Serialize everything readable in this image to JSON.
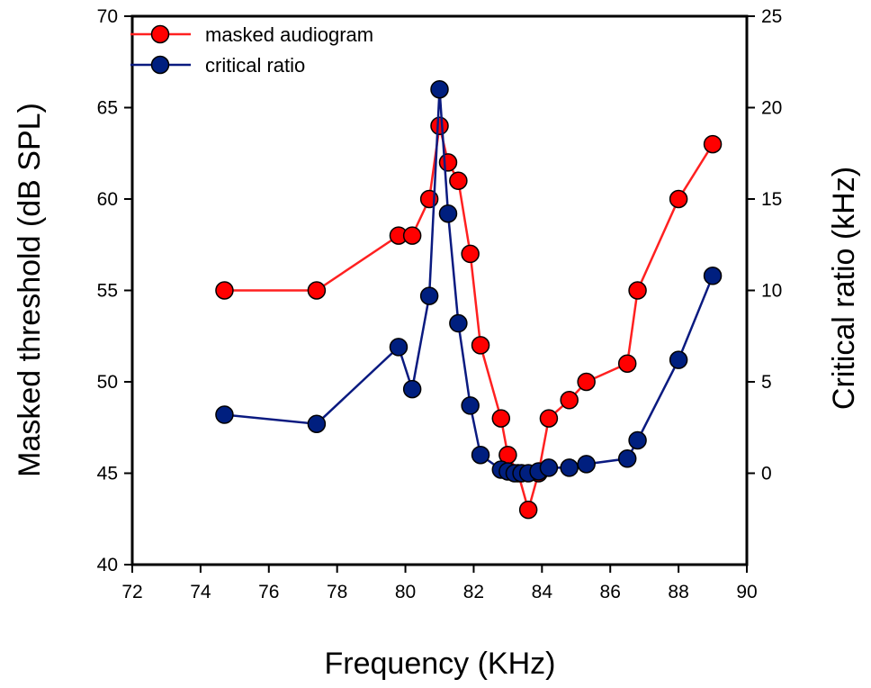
{
  "chart_data": {
    "type": "line",
    "title": "",
    "xlabel": "Frequency (KHz)",
    "ylabel": "Masked threshold (dB SPL)",
    "y2label": "Critical ratio (kHz)",
    "xlim": [
      72,
      90
    ],
    "ylim": [
      40,
      70
    ],
    "y2lim": [
      -5,
      25
    ],
    "xticks": [
      "72",
      "74",
      "76",
      "78",
      "80",
      "82",
      "84",
      "86",
      "88",
      "90"
    ],
    "yticks": [
      "40",
      "45",
      "50",
      "55",
      "60",
      "65",
      "70"
    ],
    "y2ticks": [
      "0",
      "5",
      "10",
      "15",
      "20",
      "25"
    ],
    "grid": false,
    "legend_position": "top-left",
    "series": [
      {
        "name": "masked audiogram",
        "axis": "left",
        "color": "#ff0000",
        "line_color": "#ff2020",
        "x": [
          74.7,
          77.4,
          79.8,
          80.2,
          80.7,
          81.0,
          81.25,
          81.55,
          81.9,
          82.2,
          82.8,
          83.0,
          83.3,
          83.6,
          83.9,
          84.2,
          84.8,
          85.3,
          86.5,
          86.8,
          88.0,
          89.0
        ],
        "values": [
          55,
          55,
          58,
          58,
          60,
          64,
          62,
          61,
          57,
          52,
          48,
          46,
          45,
          43,
          45,
          48,
          49,
          50,
          51,
          55,
          60,
          63
        ]
      },
      {
        "name": "critical ratio",
        "axis": "right",
        "color": "#001f7f",
        "line_color": "#0a1a80",
        "x": [
          74.7,
          77.4,
          79.8,
          80.2,
          80.7,
          81.0,
          81.25,
          81.55,
          81.9,
          82.2,
          82.8,
          83.0,
          83.2,
          83.4,
          83.6,
          83.9,
          84.2,
          84.8,
          85.3,
          86.5,
          86.8,
          88.0,
          89.0
        ],
        "values": [
          3.2,
          2.7,
          6.9,
          4.6,
          9.7,
          21.0,
          14.2,
          8.2,
          3.7,
          1.0,
          0.2,
          0.1,
          0.0,
          0.0,
          0.0,
          0.1,
          0.3,
          0.3,
          0.5,
          0.8,
          1.8,
          6.2,
          10.8
        ]
      }
    ]
  }
}
